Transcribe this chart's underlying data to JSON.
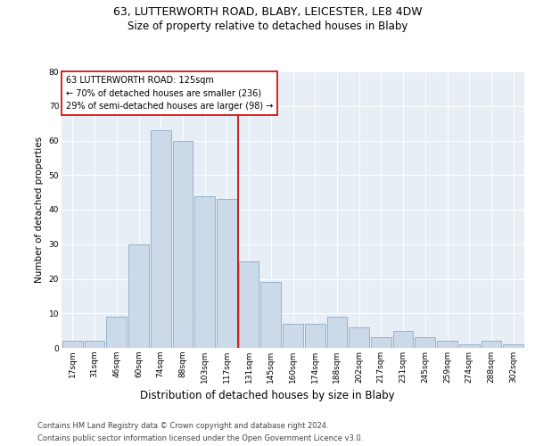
{
  "title1": "63, LUTTERWORTH ROAD, BLABY, LEICESTER, LE8 4DW",
  "title2": "Size of property relative to detached houses in Blaby",
  "xlabel": "Distribution of detached houses by size in Blaby",
  "ylabel": "Number of detached properties",
  "categories": [
    "17sqm",
    "31sqm",
    "46sqm",
    "60sqm",
    "74sqm",
    "88sqm",
    "103sqm",
    "117sqm",
    "131sqm",
    "145sqm",
    "160sqm",
    "174sqm",
    "188sqm",
    "202sqm",
    "217sqm",
    "231sqm",
    "245sqm",
    "259sqm",
    "274sqm",
    "288sqm",
    "302sqm"
  ],
  "values": [
    2,
    2,
    9,
    30,
    63,
    60,
    44,
    43,
    25,
    19,
    7,
    7,
    9,
    6,
    3,
    5,
    3,
    2,
    1,
    2,
    1
  ],
  "bar_color": "#ccd9e8",
  "bar_edge_color": "#88aac8",
  "vline_index": 7.5,
  "property_label": "63 LUTTERWORTH ROAD: 125sqm",
  "annotation_line1": "← 70% of detached houses are smaller (236)",
  "annotation_line2": "29% of semi-detached houses are larger (98) →",
  "annotation_box_color": "#ffffff",
  "annotation_box_edge": "#cc0000",
  "vline_color": "#cc0000",
  "ylim": [
    0,
    80
  ],
  "yticks": [
    0,
    10,
    20,
    30,
    40,
    50,
    60,
    70,
    80
  ],
  "footer1": "Contains HM Land Registry data © Crown copyright and database right 2024.",
  "footer2": "Contains public sector information licensed under the Open Government Licence v3.0.",
  "plot_background": "#e8eef5",
  "title1_fontsize": 9,
  "title2_fontsize": 8.5,
  "xlabel_fontsize": 8.5,
  "ylabel_fontsize": 7.5,
  "annot_fontsize": 7,
  "tick_fontsize": 6.5,
  "footer_fontsize": 6
}
